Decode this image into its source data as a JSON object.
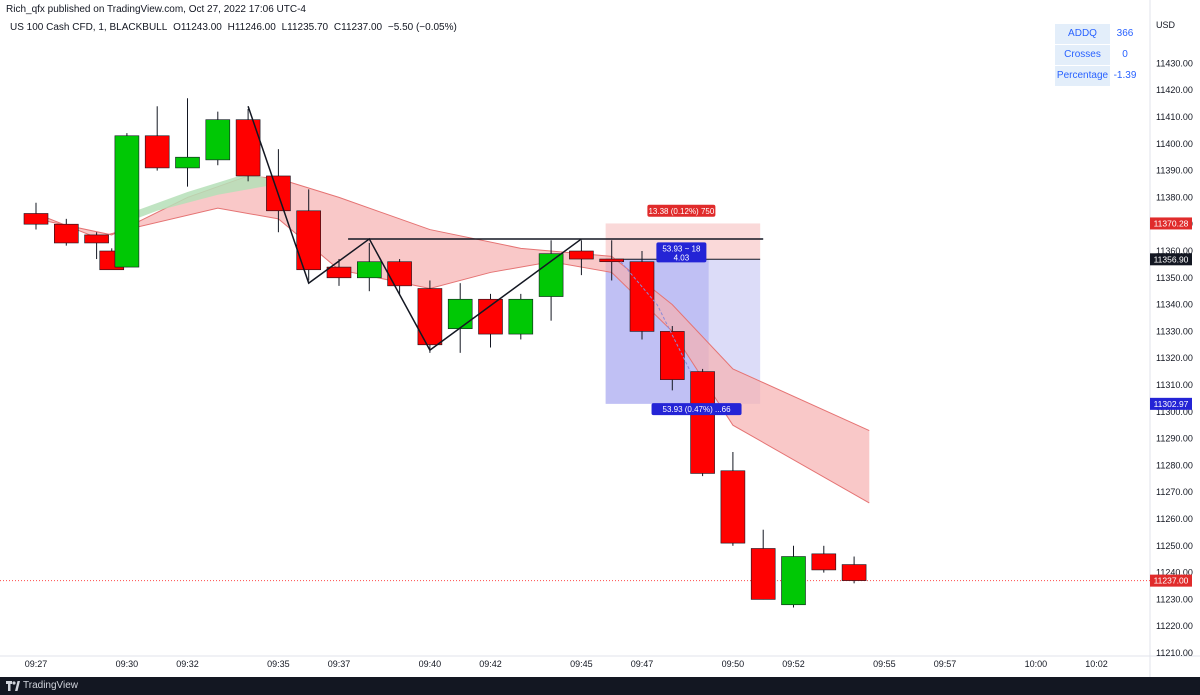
{
  "header": {
    "published": "Rich_qfx published on TradingView.com, Oct 27, 2022 17:06 UTC-4",
    "symbol": "US 100 Cash CFD, 1, BLACKBULL",
    "open": "O11243.00",
    "high": "H11246.00",
    "low": "L11235.70",
    "close": "C11237.00",
    "change": "−5.50 (−0.05%)"
  },
  "stats_table": {
    "rows": [
      {
        "label": "ADDQ",
        "value": "366"
      },
      {
        "label": "Crosses",
        "value": "0"
      },
      {
        "label": "Percentage",
        "value": "-1.39"
      }
    ]
  },
  "currency": "USD",
  "footer": {
    "brand": "TradingView"
  },
  "colors": {
    "up": "#00c805",
    "down": "#ff0000",
    "ribbon_red": "#f7b0b0",
    "ribbon_green": "#b5dfb7",
    "position_target": "#c9c9f5",
    "position_stop": "#f8cccc",
    "label_blue": "#2424d6",
    "label_red": "#e02b2b"
  },
  "chart_data": {
    "type": "candlestick",
    "timeframe": "1",
    "ylim": [
      11210,
      11440
    ],
    "y_ticks": [
      11210,
      11220,
      11230,
      11240,
      11250,
      11260,
      11270,
      11280,
      11290,
      11300,
      11310,
      11320,
      11330,
      11340,
      11350,
      11360,
      11370,
      11380,
      11390,
      11400,
      11410,
      11420,
      11430
    ],
    "x_ticks": [
      "09:27",
      "09:30",
      "09:32",
      "09:35",
      "09:37",
      "09:40",
      "09:42",
      "09:45",
      "09:47",
      "09:50",
      "09:52",
      "09:55",
      "09:57",
      "10:00",
      "10:02"
    ],
    "candles": [
      {
        "t": "09:27",
        "o": 11374,
        "h": 11378,
        "l": 11368,
        "c": 11370
      },
      {
        "t": "09:28",
        "o": 11370,
        "h": 11372,
        "l": 11362,
        "c": 11363
      },
      {
        "t": "09:29",
        "o": 11366,
        "h": 11367,
        "l": 11357,
        "c": 11363
      },
      {
        "t": "09:29.5",
        "o": 11360,
        "h": 11361,
        "l": 11353,
        "c": 11353
      },
      {
        "t": "09:30",
        "o": 11354,
        "h": 11404,
        "l": 11354,
        "c": 11403
      },
      {
        "t": "09:31",
        "o": 11403,
        "h": 11414,
        "l": 11390,
        "c": 11391
      },
      {
        "t": "09:32",
        "o": 11391,
        "h": 11417,
        "l": 11384,
        "c": 11395
      },
      {
        "t": "09:33",
        "o": 11394,
        "h": 11412,
        "l": 11392,
        "c": 11409
      },
      {
        "t": "09:34",
        "o": 11409,
        "h": 11413,
        "l": 11386,
        "c": 11388
      },
      {
        "t": "09:35",
        "o": 11388,
        "h": 11398,
        "l": 11367,
        "c": 11375
      },
      {
        "t": "09:36",
        "o": 11375,
        "h": 11383,
        "l": 11349,
        "c": 11353
      },
      {
        "t": "09:37",
        "o": 11354,
        "h": 11357,
        "l": 11347,
        "c": 11350
      },
      {
        "t": "09:38",
        "o": 11350,
        "h": 11363,
        "l": 11345,
        "c": 11356
      },
      {
        "t": "09:39",
        "o": 11356,
        "h": 11357,
        "l": 11344,
        "c": 11347
      },
      {
        "t": "09:40",
        "o": 11346,
        "h": 11349,
        "l": 11322,
        "c": 11325
      },
      {
        "t": "09:41",
        "o": 11331,
        "h": 11348,
        "l": 11322,
        "c": 11342
      },
      {
        "t": "09:42",
        "o": 11342,
        "h": 11344,
        "l": 11324,
        "c": 11329
      },
      {
        "t": "09:43",
        "o": 11329,
        "h": 11344,
        "l": 11327,
        "c": 11342
      },
      {
        "t": "09:44",
        "o": 11343,
        "h": 11364,
        "l": 11334,
        "c": 11359
      },
      {
        "t": "09:45",
        "o": 11360,
        "h": 11364,
        "l": 11351,
        "c": 11357
      },
      {
        "t": "09:46",
        "o": 11357,
        "h": 11364,
        "l": 11349,
        "c": 11356
      },
      {
        "t": "09:47",
        "o": 11356,
        "h": 11360,
        "l": 11327,
        "c": 11330
      },
      {
        "t": "09:48",
        "o": 11330,
        "h": 11332,
        "l": 11308,
        "c": 11312
      },
      {
        "t": "09:49",
        "o": 11315,
        "h": 11316,
        "l": 11276,
        "c": 11277
      },
      {
        "t": "09:50",
        "o": 11278,
        "h": 11285,
        "l": 11250,
        "c": 11251
      },
      {
        "t": "09:51",
        "o": 11249,
        "h": 11256,
        "l": 11230,
        "c": 11230
      },
      {
        "t": "09:52",
        "o": 11228,
        "h": 11250,
        "l": 11227,
        "c": 11246
      },
      {
        "t": "09:53",
        "o": 11247,
        "h": 11250,
        "l": 11240,
        "c": 11241
      },
      {
        "t": "09:54",
        "o": 11243,
        "h": 11246,
        "l": 11236,
        "c": 11237
      }
    ],
    "price_labels": [
      {
        "text": "11370.28",
        "value": 11370.28,
        "color": "#e02b2b"
      },
      {
        "text": "11356.90",
        "value": 11356.9,
        "color": "#131722"
      },
      {
        "text": "11302.97",
        "value": 11302.97,
        "color": "#2424d6"
      },
      {
        "text": "11237.00",
        "value": 11237,
        "color": "#e02b2b"
      }
    ],
    "annotations": [
      {
        "text": "13.38 (0.12%) 750",
        "color": "#e02b2b"
      },
      {
        "text": "53.93 ~ 18",
        "text2": "4.03",
        "color": "#2424d6"
      },
      {
        "text": "53.93 (0.47%) ...66",
        "color": "#2424d6"
      }
    ],
    "short_position": {
      "entry": 11356.9,
      "stop": 11370.28,
      "target": 11302.97
    },
    "horizontal_line": 11364.5,
    "zigzag": [
      [
        11414,
        "09:34"
      ],
      [
        11348,
        "09:36"
      ],
      [
        11364.5,
        "09:38"
      ],
      [
        11323,
        "09:40"
      ],
      [
        11364.5,
        "09:45"
      ]
    ]
  }
}
